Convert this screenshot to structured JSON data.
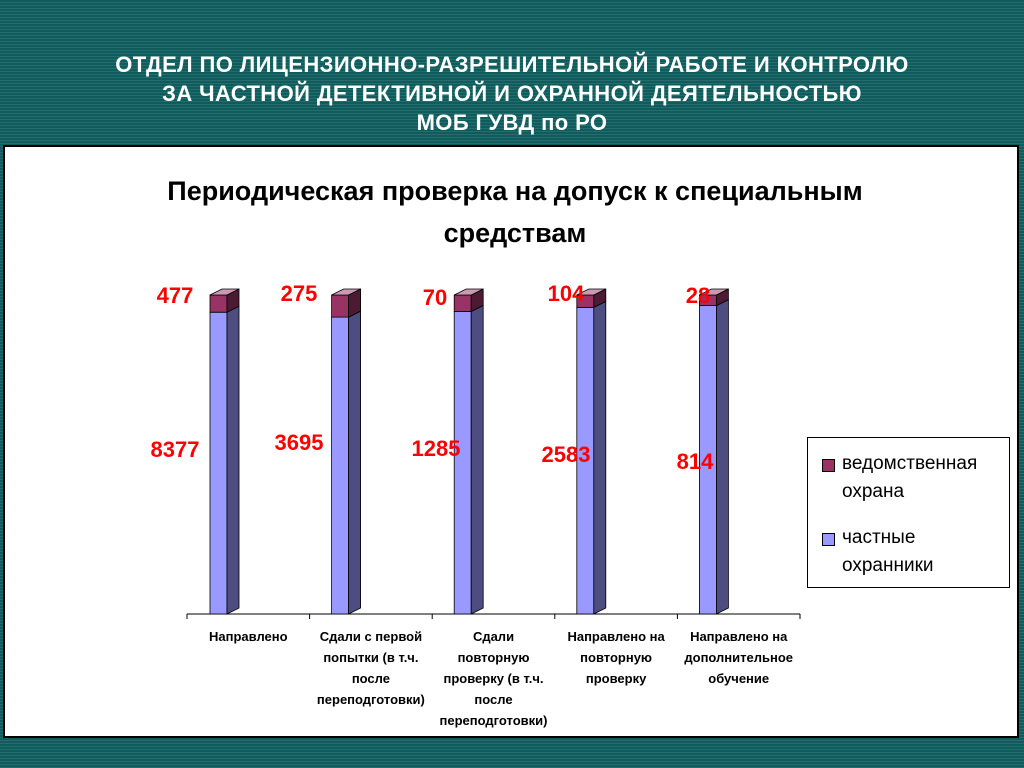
{
  "header": {
    "lines": [
      "ОТДЕЛ ПО ЛИЦЕНЗИОННО-РАЗРЕШИТЕЛЬНОЙ РАБОТЕ И КОНТРОЛЮ",
      "ЗА ЧАСТНОЙ ДЕТЕКТИВНОЙ И ОХРАННОЙ ДЕЯТЕЛЬНОСТЬЮ",
      "МОБ ГУВД по РО"
    ]
  },
  "colors": {
    "background": "#0f5c5c",
    "series_private_front": "#9999ff",
    "series_departmental_front": "#993366",
    "data_label": "#ff0000"
  },
  "chart_data": {
    "type": "bar",
    "stacked": true,
    "normalized_percent": true,
    "title": "Периодическая проверка на допуск к специальным средствам",
    "title_lines": [
      "Периодическая проверка на допуск к специальным",
      "средствам"
    ],
    "xlabel": "",
    "ylabel": "",
    "grid": false,
    "legend_position": "right",
    "categories": [
      "Направлено",
      "Сдали с первой попытки (в т.ч. после переподготовки)",
      "Сдали повторную проверку (в т.ч. после переподготовки)",
      "Направлено на повторную проверку",
      "Направлено на дополнительное обучение"
    ],
    "category_lines": [
      [
        "Направлено"
      ],
      [
        "Сдали с первой",
        "попытки (в т.ч.",
        "после",
        "переподготовки)"
      ],
      [
        "Сдали",
        "повторную",
        "проверку (в т.ч.",
        "после",
        "переподготовки)"
      ],
      [
        "Направлено на",
        "повторную",
        "проверку"
      ],
      [
        "Направлено на",
        "дополнительное",
        "обучение"
      ]
    ],
    "series": [
      {
        "name": "частные охранники",
        "name_lines": [
          "частные",
          "охранники"
        ],
        "values": [
          8377,
          3695,
          1285,
          2583,
          814
        ],
        "value_labels": [
          "8377",
          "3695",
          "1285",
          "2583",
          "814"
        ]
      },
      {
        "name": "ведомственная охрана",
        "name_lines": [
          "ведомственная",
          "охрана"
        ],
        "values": [
          477,
          275,
          70,
          104,
          28
        ],
        "value_labels": [
          "477",
          "275",
          "70",
          "104",
          "28"
        ]
      }
    ]
  }
}
